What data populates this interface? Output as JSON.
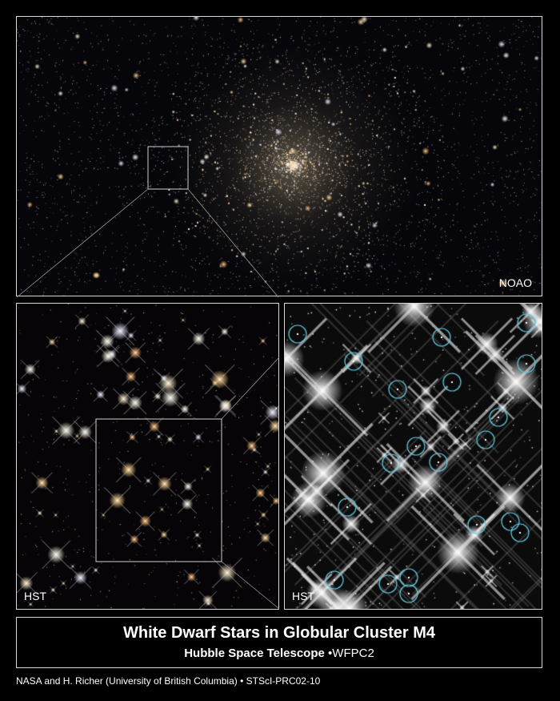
{
  "panels": {
    "top_credit": "NOAO",
    "left_credit": "HST",
    "right_credit": "HST"
  },
  "title": {
    "main": "White Dwarf Stars in Globular Cluster M4",
    "sub_bold": "Hubble Space Telescope",
    "sub_bullet": "•",
    "sub_normal": "WFPC2"
  },
  "footer": "NASA and H. Richer (University of British Columbia) • STScI-PRC02-10",
  "colors": {
    "frame": "#d8d8d8",
    "circle": "#5ec8e0",
    "background": "#000000"
  }
}
